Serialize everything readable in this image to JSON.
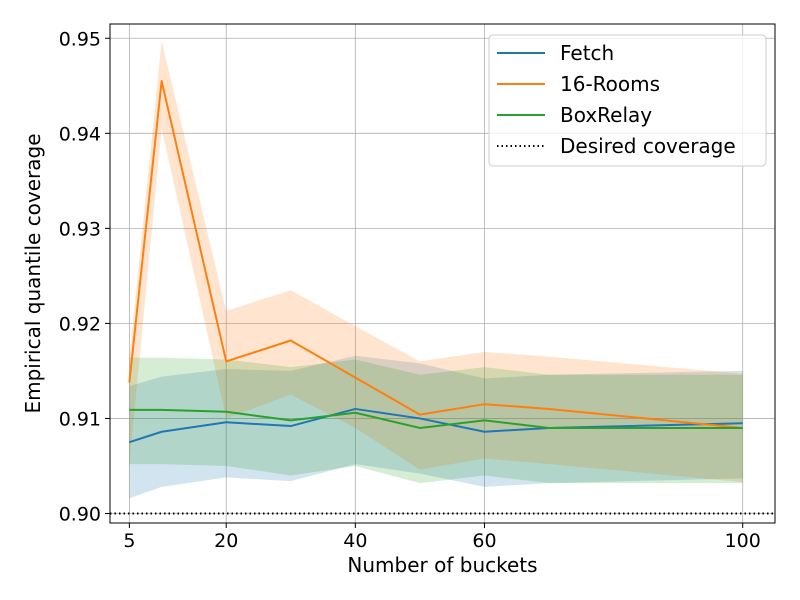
{
  "chart_data": {
    "type": "line",
    "xlabel": "Number of buckets",
    "ylabel": "Empirical quantile coverage",
    "xlim": [
      2,
      105
    ],
    "ylim": [
      0.899,
      0.9515
    ],
    "xticks": [
      5,
      20,
      40,
      60,
      100
    ],
    "xtick_labels": [
      "5",
      "20",
      "40",
      "60",
      "100"
    ],
    "yticks": [
      0.9,
      0.91,
      0.92,
      0.93,
      0.94,
      0.95
    ],
    "ytick_labels": [
      "0.90",
      "0.91",
      "0.92",
      "0.93",
      "0.94",
      "0.95"
    ],
    "grid": true,
    "legend_position": "top-right",
    "series": [
      {
        "name": "Fetch",
        "color": "#1f77b4",
        "x": [
          5,
          10,
          20,
          30,
          40,
          50,
          60,
          70,
          100
        ],
        "y": [
          0.9075,
          0.9086,
          0.9096,
          0.9092,
          0.911,
          0.91,
          0.9086,
          0.909,
          0.9095
        ],
        "lower": [
          0.9016,
          0.9028,
          0.9038,
          0.9034,
          0.9052,
          0.9042,
          0.9028,
          0.9032,
          0.9037
        ],
        "upper": [
          0.9134,
          0.9144,
          0.9152,
          0.915,
          0.9166,
          0.9158,
          0.9142,
          0.9146,
          0.915
        ]
      },
      {
        "name": "16-Rooms",
        "color": "#ff7f0e",
        "x": [
          5,
          10,
          20,
          30,
          40,
          50,
          60,
          70,
          100
        ],
        "y": [
          0.9138,
          0.9455,
          0.916,
          0.9182,
          0.9143,
          0.9104,
          0.9115,
          0.911,
          0.909
        ],
        "lower": [
          0.9052,
          0.9405,
          0.91,
          0.9125,
          0.909,
          0.9046,
          0.9058,
          0.9052,
          0.9033
        ],
        "upper": [
          0.9164,
          0.9497,
          0.9213,
          0.9235,
          0.9197,
          0.916,
          0.917,
          0.9165,
          0.9147
        ]
      },
      {
        "name": "BoxRelay",
        "color": "#2ca02c",
        "x": [
          5,
          10,
          20,
          30,
          40,
          50,
          60,
          70,
          100
        ],
        "y": [
          0.9109,
          0.9109,
          0.9107,
          0.9098,
          0.9106,
          0.909,
          0.9098,
          0.909,
          0.909
        ],
        "lower": [
          0.9052,
          0.9052,
          0.905,
          0.904,
          0.905,
          0.9032,
          0.904,
          0.9032,
          0.9032
        ],
        "upper": [
          0.9164,
          0.9164,
          0.9162,
          0.9154,
          0.9162,
          0.9146,
          0.9154,
          0.9146,
          0.9146
        ]
      }
    ],
    "reference_line": {
      "name": "Desired coverage",
      "y": 0.9,
      "color": "#000000",
      "style": "dotted"
    }
  }
}
